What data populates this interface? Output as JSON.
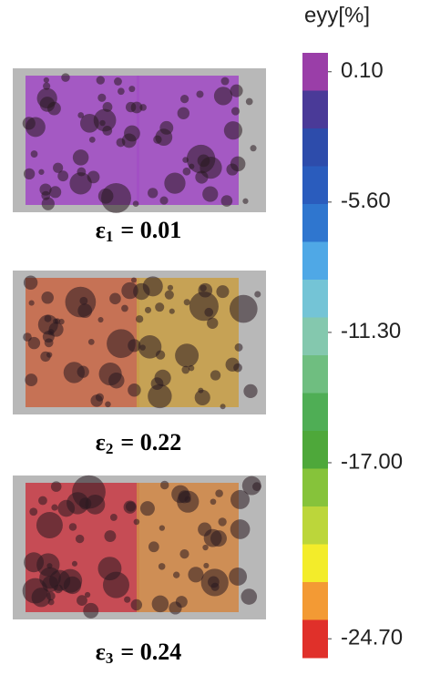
{
  "panels": [
    {
      "symbol": "ε",
      "index": "1",
      "rest": "= 0.01"
    },
    {
      "symbol": "ε",
      "index": "2",
      "rest": "= 0.22"
    },
    {
      "symbol": "ε",
      "index": "3",
      "rest": "= 0.24"
    }
  ],
  "colorbar": {
    "title": "eyy[%]",
    "range": [
      0.1,
      -24.7
    ],
    "ticks": [
      {
        "value": 0.1,
        "label": "0.10"
      },
      {
        "value": -5.6,
        "label": "-5.60"
      },
      {
        "value": -11.3,
        "label": "-11.30"
      },
      {
        "value": -17,
        "label": "-17.00"
      },
      {
        "value": -24.7,
        "label": "-24.70"
      }
    ],
    "colors": [
      "#9a3ea8",
      "#4a3a98",
      "#2d4cab",
      "#2a5cbd",
      "#2f76cf",
      "#4fa8e6",
      "#74c4d6",
      "#84c8ae",
      "#6fbe80",
      "#4fae55",
      "#4ea83a",
      "#86c33a",
      "#bcd63a",
      "#f3ec2a",
      "#f39a34",
      "#e0302a"
    ]
  }
}
